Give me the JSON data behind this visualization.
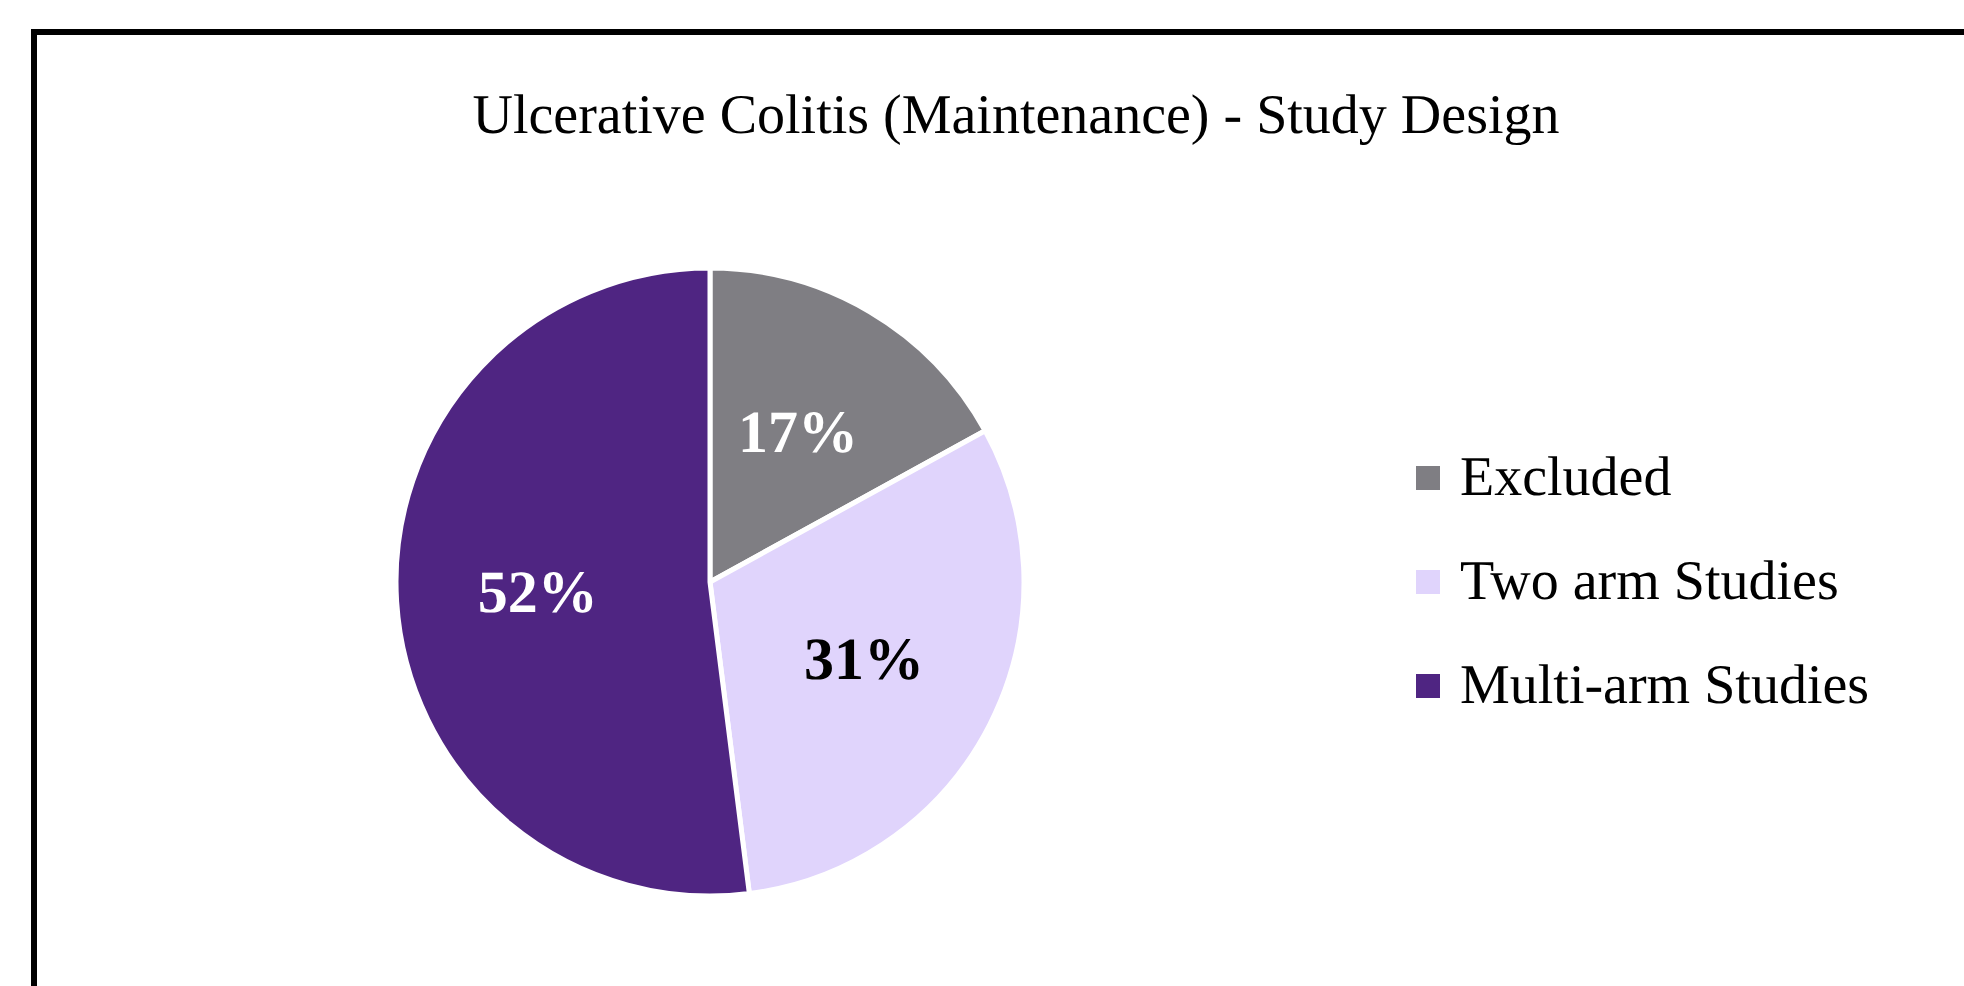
{
  "chart_data": {
    "type": "pie",
    "title": "Ulcerative Colitis (Maintenance) - Study Design",
    "categories": [
      "Excluded",
      "Two arm Studies",
      "Multi-arm Studies"
    ],
    "values": [
      17,
      31,
      52
    ],
    "colors": [
      "#7f7e83",
      "#e0d4fc",
      "#4f2582"
    ],
    "value_labels": [
      "17%",
      "31%",
      "52%"
    ],
    "legend": "right"
  }
}
